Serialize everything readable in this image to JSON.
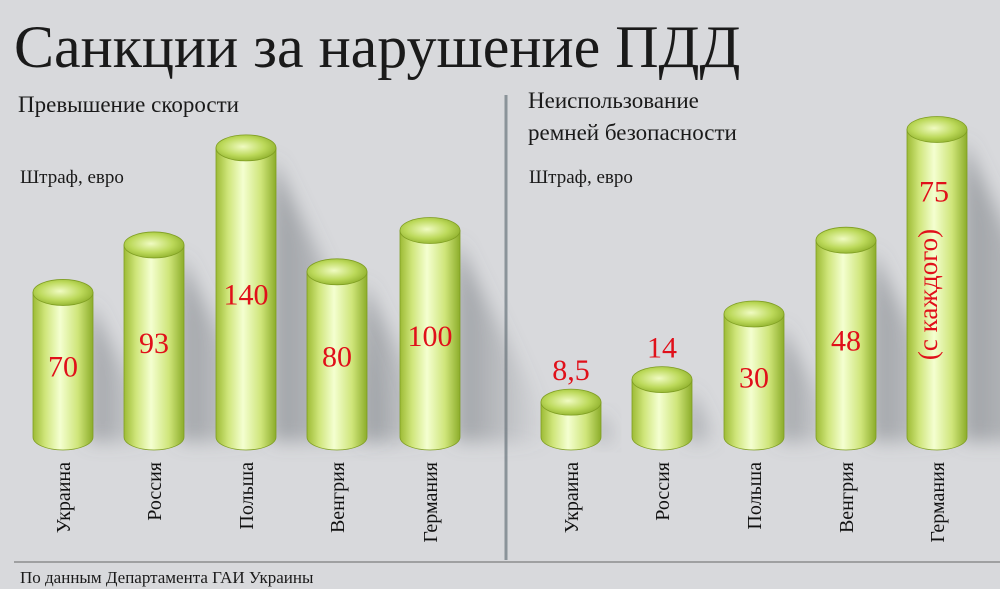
{
  "title": "Санкции за нарушение ПДД",
  "source": "По данным Департамента ГАИ Украины",
  "colors": {
    "background": "#d8d9dc",
    "cylinder_light": "#f4ffd0",
    "cylinder_mid": "#cfe57a",
    "cylinder_dark": "#8cad2a",
    "value_text": "#e0101a",
    "divider": "#8a9399"
  },
  "chart_data": [
    {
      "type": "bar",
      "title": "Превышение скорости",
      "ylabel": "Штраф, евро",
      "categories": [
        "Украина",
        "Россия",
        "Польша",
        "Венгрия",
        "Германия"
      ],
      "values": [
        70,
        93,
        140,
        80,
        100
      ],
      "value_labels": [
        "70",
        "93",
        "140",
        "80",
        "100"
      ],
      "notes": [
        "",
        "",
        "",
        "",
        ""
      ]
    },
    {
      "type": "bar",
      "title": "Неиспользование ремней безопасности",
      "title_lines": [
        "Неиспользование",
        "ремней безопасности"
      ],
      "ylabel": "Штраф, евро",
      "categories": [
        "Украина",
        "Россия",
        "Польша",
        "Венгрия",
        "Германия"
      ],
      "values": [
        8.5,
        14,
        30,
        48,
        75
      ],
      "value_labels": [
        "8,5",
        "14",
        "30",
        "48",
        "75"
      ],
      "notes": [
        "",
        "",
        "",
        "",
        "(с каждого)"
      ]
    }
  ]
}
